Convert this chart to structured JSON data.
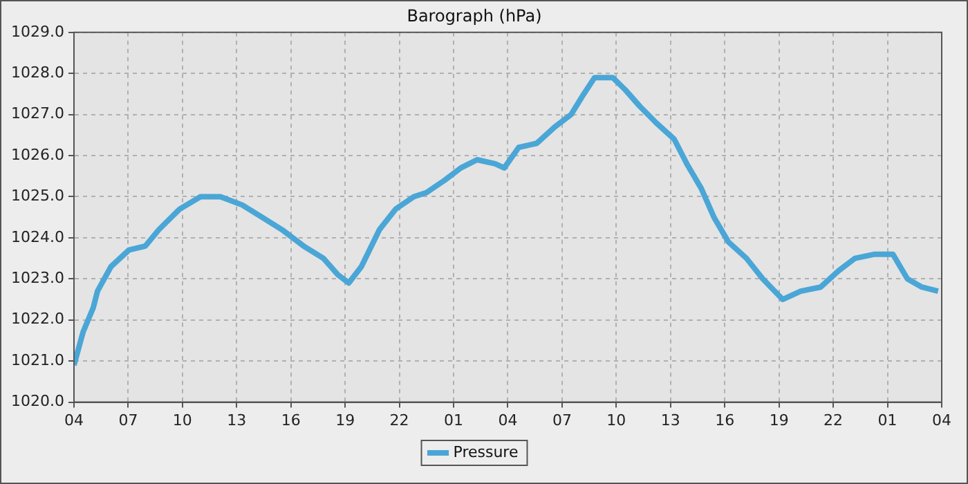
{
  "chart_data": {
    "type": "line",
    "title": "Barograph (hPa)",
    "x": [
      "--01-01T04:00",
      "--01-01T04:30",
      "--01-01T05:04",
      "--01-01T05:18",
      "--01-01T06:03",
      "--01-01T07:02",
      "--01-01T07:57",
      "--01-01T08:42",
      "--01-01T09:51",
      "--01-01T11:00",
      "--01-01T12:06",
      "--01-01T13:18",
      "--01-01T14:24",
      "--01-01T15:30",
      "--01-01T16:42",
      "--01-01T17:48",
      "--01-01T18:36",
      "--01-01T19:12",
      "--01-01T19:54",
      "--01-01T20:54",
      "--01-01T21:48",
      "--01-01T22:48",
      "--01-01T23:30",
      "--01-02T00:30",
      "--01-02T01:24",
      "--01-02T02:18",
      "--01-02T03:18",
      "--01-02T03:48",
      "--01-02T04:36",
      "--01-02T05:36",
      "--01-02T06:36",
      "--01-02T07:30",
      "--01-02T08:12",
      "--01-02T08:48",
      "--01-02T09:48",
      "--01-02T10:30",
      "--01-02T11:18",
      "--01-02T12:12",
      "--01-02T13:12",
      "--01-02T13:54",
      "--01-02T14:42",
      "--01-02T15:24",
      "--01-02T16:12",
      "--01-02T17:12",
      "--01-02T18:06",
      "--01-02T19:12",
      "--01-02T20:12",
      "--01-02T21:18",
      "--01-02T22:18",
      "--01-02T23:12",
      "--01-03T00:18",
      "--01-03T01:18",
      "--01-03T02:06",
      "--01-03T02:54",
      "--01-03T03:48"
    ],
    "series": [
      {
        "name": "Pressure",
        "color": "#4aa6d6",
        "values": [
          1020.9,
          1021.7,
          1022.3,
          1022.7,
          1023.3,
          1023.7,
          1023.8,
          1024.2,
          1024.7,
          1025.0,
          1025.0,
          1024.8,
          1024.5,
          1024.2,
          1023.8,
          1023.5,
          1023.1,
          1022.9,
          1023.3,
          1024.2,
          1024.7,
          1025.0,
          1025.1,
          1025.4,
          1025.7,
          1025.9,
          1025.8,
          1025.7,
          1026.2,
          1026.3,
          1026.7,
          1027.0,
          1027.5,
          1027.9,
          1027.9,
          1027.6,
          1027.2,
          1026.8,
          1026.4,
          1025.8,
          1025.2,
          1024.5,
          1023.9,
          1023.5,
          1023.0,
          1022.5,
          1022.7,
          1022.8,
          1023.2,
          1023.5,
          1023.6,
          1023.6,
          1023.0,
          1022.8,
          1022.7
        ]
      }
    ],
    "xlim": [
      "--01-01T04:00",
      "--01-03T04:00"
    ],
    "xticks": [
      {
        "value": "--01-01T04:00",
        "label": "04"
      },
      {
        "value": "--01-01T07:00",
        "label": "07"
      },
      {
        "value": "--01-01T10:00",
        "label": "10"
      },
      {
        "value": "--01-01T13:00",
        "label": "13"
      },
      {
        "value": "--01-01T16:00",
        "label": "16"
      },
      {
        "value": "--01-01T19:00",
        "label": "19"
      },
      {
        "value": "--01-01T22:00",
        "label": "22"
      },
      {
        "value": "--01-02T01:00",
        "label": "01"
      },
      {
        "value": "--01-02T04:00",
        "label": "04"
      },
      {
        "value": "--01-02T07:00",
        "label": "07"
      },
      {
        "value": "--01-02T10:00",
        "label": "10"
      },
      {
        "value": "--01-02T13:00",
        "label": "13"
      },
      {
        "value": "--01-02T16:00",
        "label": "16"
      },
      {
        "value": "--01-02T19:00",
        "label": "19"
      },
      {
        "value": "--01-02T22:00",
        "label": "22"
      },
      {
        "value": "--01-03T01:00",
        "label": "01"
      },
      {
        "value": "--01-03T04:00",
        "label": "04"
      }
    ],
    "ylim": [
      1020,
      1029
    ],
    "yticks": [
      {
        "value": 1020,
        "label": "1020.0"
      },
      {
        "value": 1021,
        "label": "1021.0"
      },
      {
        "value": 1022,
        "label": "1022.0"
      },
      {
        "value": 1023,
        "label": "1023.0"
      },
      {
        "value": 1024,
        "label": "1024.0"
      },
      {
        "value": 1025,
        "label": "1025.0"
      },
      {
        "value": 1026,
        "label": "1026.0"
      },
      {
        "value": 1027,
        "label": "1027.0"
      },
      {
        "value": 1028,
        "label": "1028.0"
      },
      {
        "value": 1029,
        "label": "1029.0"
      }
    ],
    "grid": true,
    "legend": "bottom",
    "line_style": "solid",
    "marker": "none"
  }
}
